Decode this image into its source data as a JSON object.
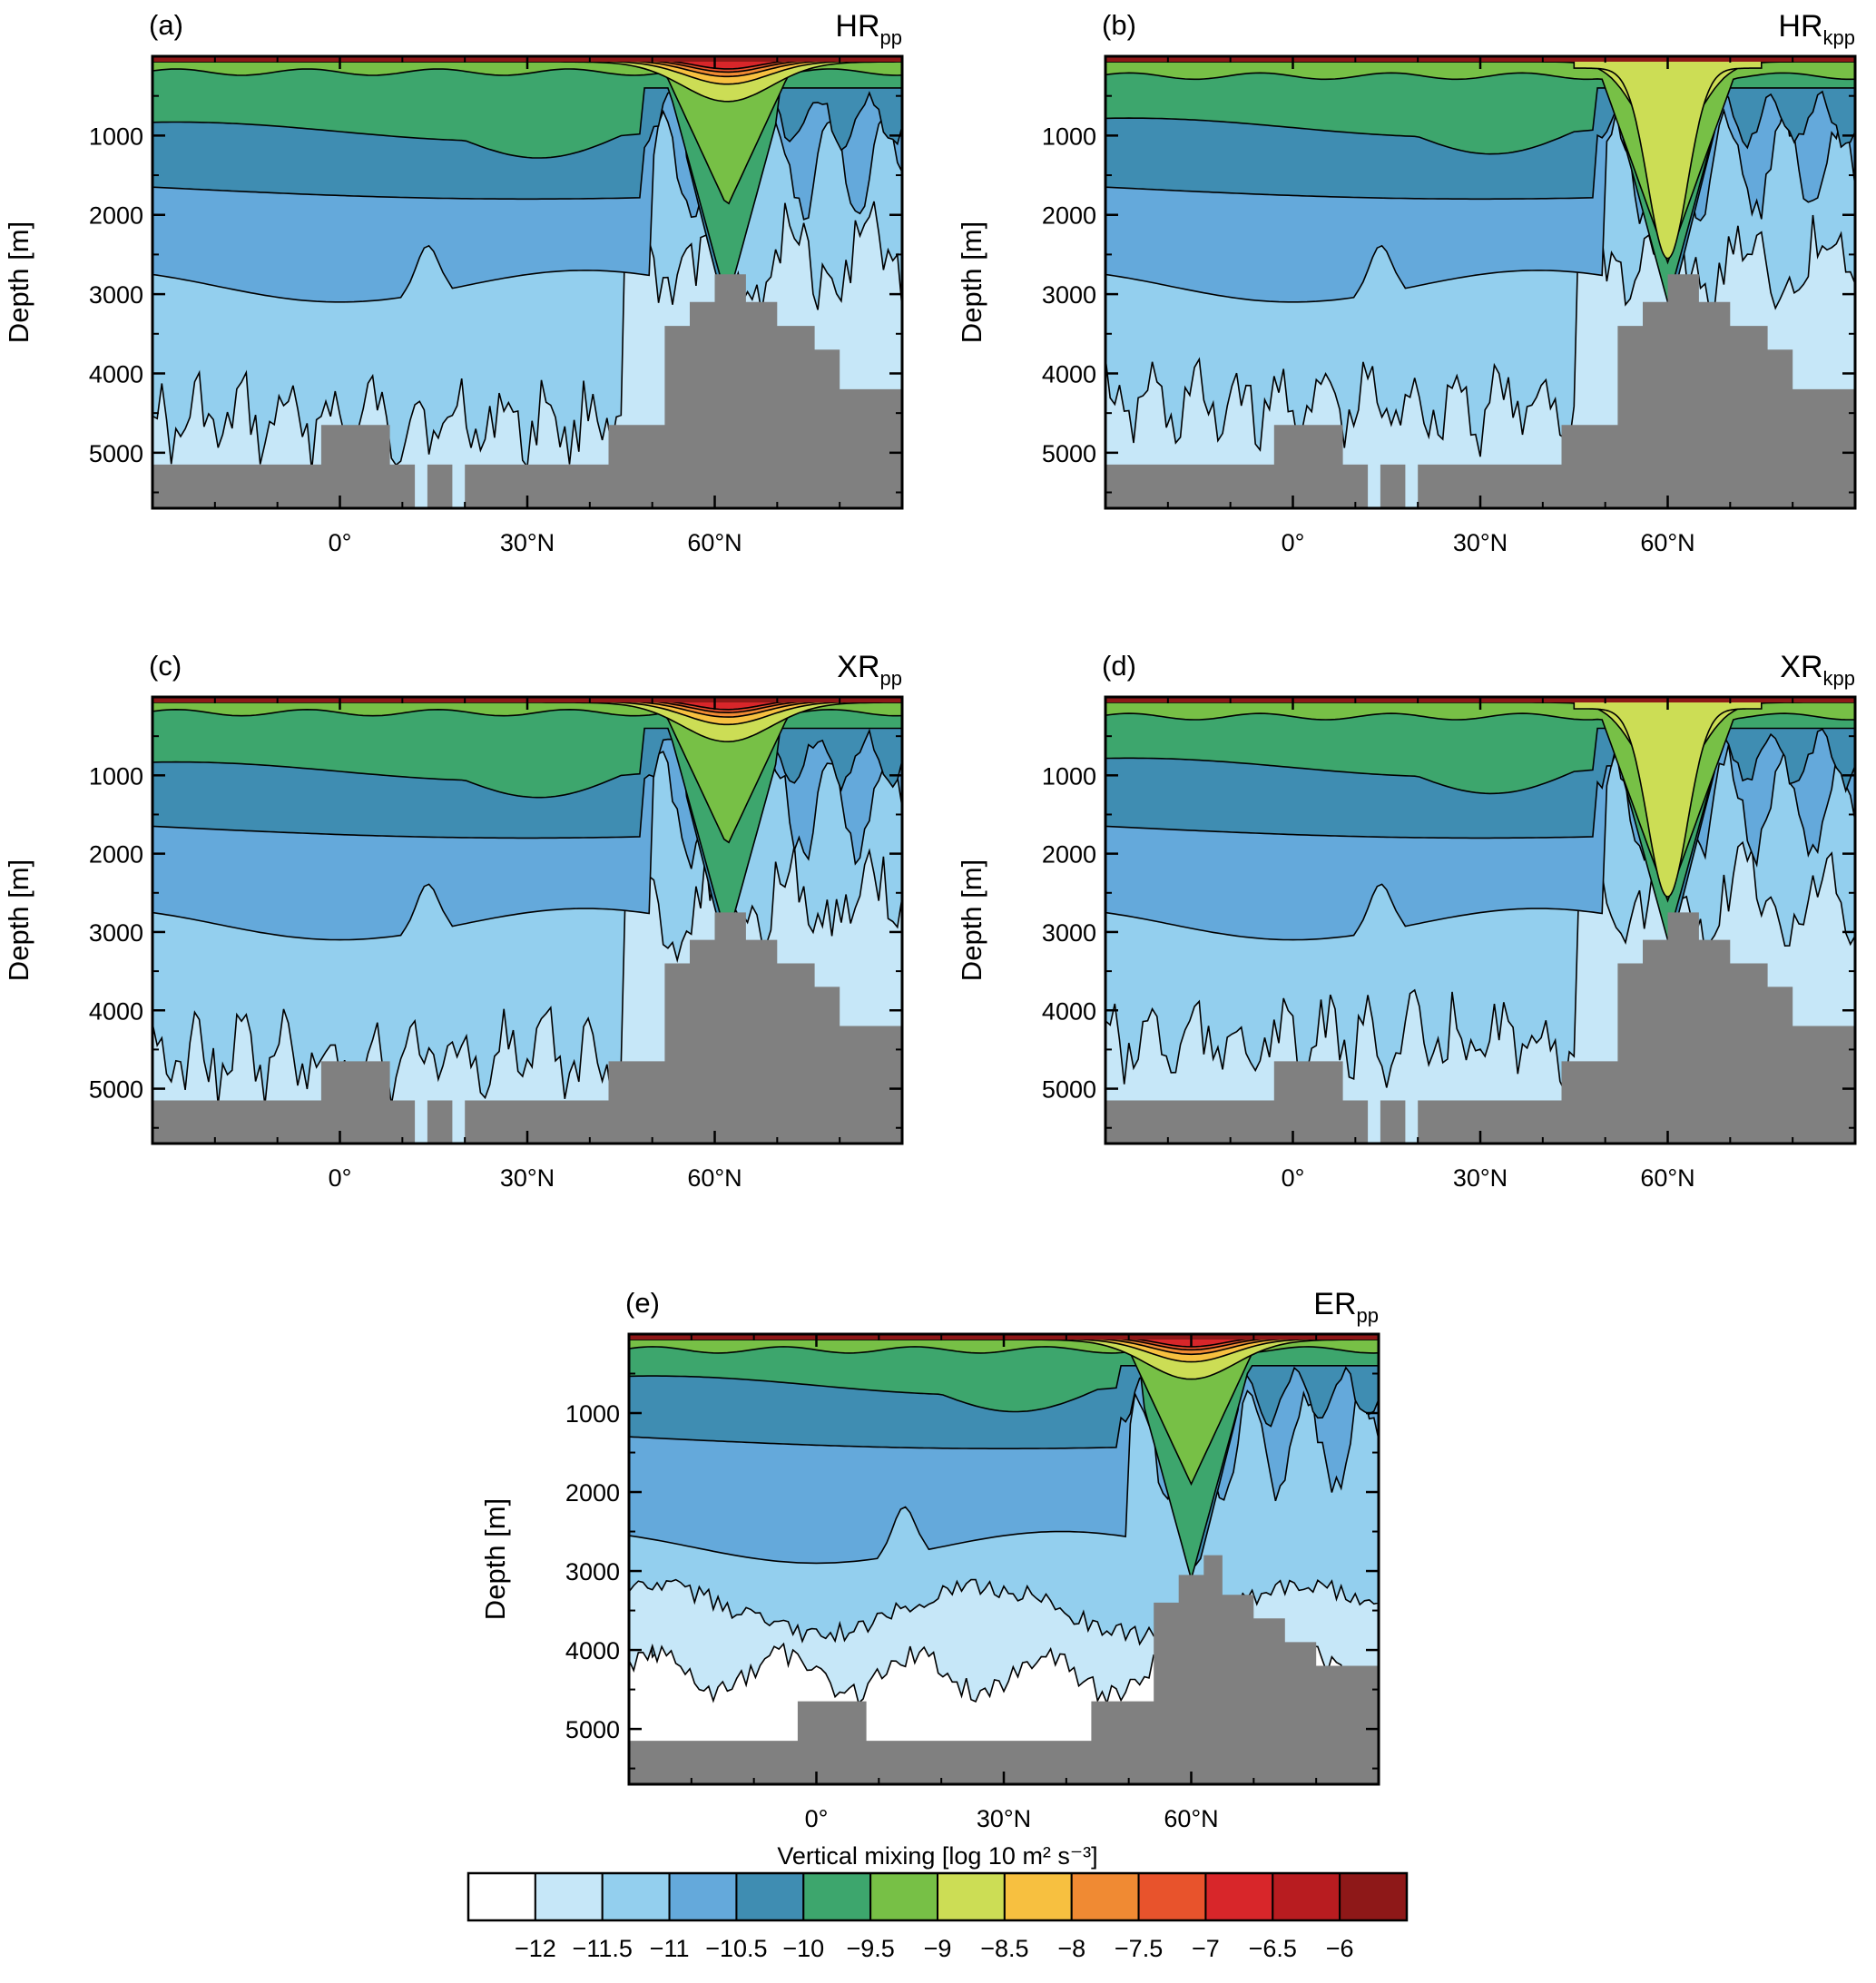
{
  "figure": {
    "colorbar": {
      "title": "Vertical mixing [log 10 m² s⁻³]",
      "levels": [
        "−12",
        "−11.5",
        "−11",
        "−10.5",
        "−10",
        "−9.5",
        "−9",
        "−8.5",
        "−8",
        "−7.5",
        "−7",
        "−6.5",
        "−6"
      ],
      "colors": [
        "#ffffff",
        "#c6e7f8",
        "#93cfee",
        "#64a9db",
        "#3f8db2",
        "#3da66d",
        "#77c046",
        "#ccdd55",
        "#f7c040",
        "#f08a33",
        "#e8532c",
        "#d8262a",
        "#b81c20",
        "#8e1818"
      ]
    },
    "land_color": "#808080"
  },
  "chart_data": [
    {
      "type": "heatmap",
      "panel": "(a)",
      "title_main": "HR",
      "title_sub": "pp",
      "ylabel": "Depth [m]",
      "yticks": [
        "1000",
        "2000",
        "3000",
        "4000",
        "5000"
      ],
      "xticks": [
        "0°",
        "30°N",
        "60°N"
      ],
      "ylim": [
        0,
        5700
      ],
      "xlim": [
        -30,
        90
      ],
      "note": "vertical mixing field, contour interval 0.5 log10 units",
      "mixed_layer_peak_lat": 62,
      "lnadd_y1": [
        0,
        0.14,
        0.3
      ],
      "isoline_depths": [
        {
          "level": "-9.5",
          "depth": 200
        },
        {
          "level": "-10",
          "depth": 950
        },
        {
          "level": "-10.5",
          "depth": 1650
        },
        {
          "level": "-11",
          "depth": 2900
        },
        {
          "level": "-11.5",
          "depth": 4600
        }
      ]
    },
    {
      "type": "heatmap",
      "panel": "(b)",
      "title_main": "HR",
      "title_sub": "kpp",
      "ylabel": "Depth [m]",
      "yticks": [
        "1000",
        "2000",
        "3000",
        "4000",
        "5000"
      ],
      "xticks": [
        "0°",
        "30°N",
        "60°N"
      ],
      "ylim": [
        0,
        5700
      ],
      "xlim": [
        -30,
        90
      ],
      "mixed_layer_peak_lat": 60,
      "isoline_depths": [
        {
          "level": "-9.5",
          "depth": 250
        },
        {
          "level": "-10",
          "depth": 900
        },
        {
          "level": "-10.5",
          "depth": 1650
        },
        {
          "level": "-11",
          "depth": 2900
        },
        {
          "level": "-11.5",
          "depth": 4400
        }
      ]
    },
    {
      "type": "heatmap",
      "panel": "(c)",
      "title_main": "XR",
      "title_sub": "pp",
      "ylabel": "Depth [m]",
      "yticks": [
        "1000",
        "2000",
        "3000",
        "4000",
        "5000"
      ],
      "xticks": [
        "0°",
        "30°N",
        "60°N"
      ],
      "ylim": [
        0,
        5700
      ],
      "xlim": [
        -30,
        90
      ],
      "mixed_layer_peak_lat": 62,
      "isoline_depths": [
        {
          "level": "-9.5",
          "depth": 200
        },
        {
          "level": "-10",
          "depth": 950
        },
        {
          "level": "-10.5",
          "depth": 1650
        },
        {
          "level": "-11",
          "depth": 2900
        },
        {
          "level": "-11.5",
          "depth": 4600
        }
      ]
    },
    {
      "type": "heatmap",
      "panel": "(d)",
      "title_main": "XR",
      "title_sub": "kpp",
      "ylabel": "Depth [m]",
      "yticks": [
        "1000",
        "2000",
        "3000",
        "4000",
        "5000"
      ],
      "xticks": [
        "0°",
        "30°N",
        "60°N"
      ],
      "ylim": [
        0,
        5700
      ],
      "xlim": [
        -30,
        90
      ],
      "mixed_layer_peak_lat": 60,
      "isoline_depths": [
        {
          "level": "-9.5",
          "depth": 250
        },
        {
          "level": "-10",
          "depth": 900
        },
        {
          "level": "-10.5",
          "depth": 1650
        },
        {
          "level": "-11",
          "depth": 2900
        },
        {
          "level": "-11.5",
          "depth": 4400
        }
      ]
    },
    {
      "type": "heatmap",
      "panel": "(e)",
      "title_main": "ER",
      "title_sub": "pp",
      "ylabel": "Depth [m]",
      "yticks": [
        "1000",
        "2000",
        "3000",
        "4000",
        "5000"
      ],
      "xticks": [
        "0°",
        "30°N",
        "60°N"
      ],
      "ylim": [
        0,
        5700
      ],
      "xlim": [
        -30,
        90
      ],
      "mixed_layer_peak_lat": 60,
      "isoline_depths": [
        {
          "level": "-9.5",
          "depth": 200
        },
        {
          "level": "-10",
          "depth": 650
        },
        {
          "level": "-10.5",
          "depth": 1300
        },
        {
          "level": "-11",
          "depth": 2700
        },
        {
          "level": "-11.5",
          "depth": 3400
        },
        {
          "level": "-12",
          "depth": 4300
        }
      ]
    }
  ]
}
